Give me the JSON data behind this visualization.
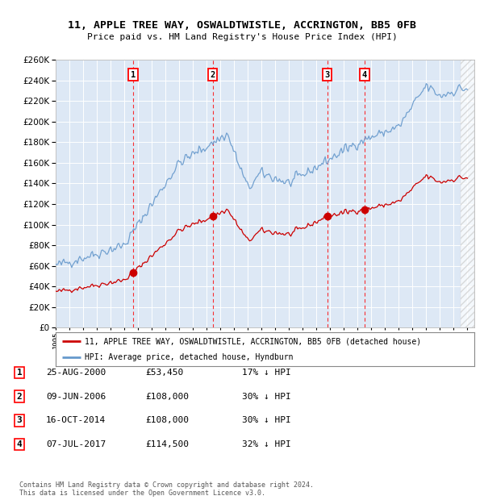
{
  "title1": "11, APPLE TREE WAY, OSWALDTWISTLE, ACCRINGTON, BB5 0FB",
  "title2": "Price paid vs. HM Land Registry's House Price Index (HPI)",
  "ylim": [
    0,
    260000
  ],
  "yticks": [
    0,
    20000,
    40000,
    60000,
    80000,
    100000,
    120000,
    140000,
    160000,
    180000,
    200000,
    220000,
    240000,
    260000
  ],
  "sale_dates_num": [
    2000.648,
    2006.438,
    2014.79,
    2017.511
  ],
  "sale_prices": [
    53450,
    108000,
    108000,
    114500
  ],
  "sale_labels": [
    "1",
    "2",
    "3",
    "4"
  ],
  "sale_date_strs": [
    "25-AUG-2000",
    "09-JUN-2006",
    "16-OCT-2014",
    "07-JUL-2017"
  ],
  "sale_price_strs": [
    "£53,450",
    "£108,000",
    "£108,000",
    "£114,500"
  ],
  "sale_hpi_strs": [
    "17% ↓ HPI",
    "30% ↓ HPI",
    "30% ↓ HPI",
    "32% ↓ HPI"
  ],
  "legend_house": "11, APPLE TREE WAY, OSWALDTWISTLE, ACCRINGTON, BB5 0FB (detached house)",
  "legend_hpi": "HPI: Average price, detached house, Hyndburn",
  "footer1": "Contains HM Land Registry data © Crown copyright and database right 2024.",
  "footer2": "This data is licensed under the Open Government Licence v3.0.",
  "house_color": "#cc0000",
  "hpi_color": "#6699cc",
  "bg_color": "#ffffff",
  "plot_bg": "#dde8f5",
  "xlim_start": 1995.0,
  "xlim_end": 2025.5
}
